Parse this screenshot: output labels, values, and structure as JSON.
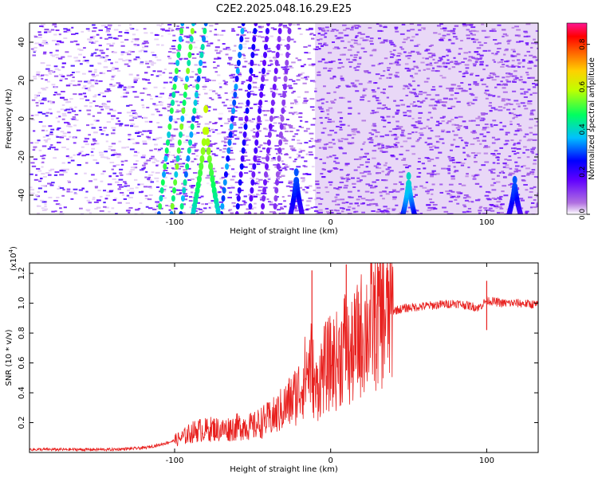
{
  "figure": {
    "title": "C2E2.2025.048.16.29.E25"
  },
  "chart_data": [
    {
      "type": "heatmap",
      "xlabel": "Height of straight line (km)",
      "ylabel": "Frequency (Hz)",
      "xlim": [
        -193,
        133
      ],
      "ylim": [
        -50,
        50
      ],
      "xticks": [
        -100,
        0,
        100
      ],
      "xtick_labels": [
        "-100",
        "0",
        "100"
      ],
      "yticks": [
        -40,
        -20,
        0,
        20,
        40
      ],
      "ytick_labels": [
        "-40",
        "-20",
        "0",
        "20",
        "40"
      ],
      "colorbar": {
        "label": "Normalized spectral amplitude",
        "range": [
          0,
          0.9
        ],
        "ticks": [
          0.0,
          0.2,
          0.4,
          0.6,
          0.8
        ],
        "tick_labels": [
          "0.0",
          "0.2",
          "0.4",
          "0.6",
          "0.8"
        ]
      },
      "colormap": [
        "#ffffff",
        "#8a2be2",
        "#0000ff",
        "#00ffff",
        "#00ff00",
        "#ffff00",
        "#ff8c00",
        "#ff0000",
        "#ff1493"
      ],
      "bands": [
        {
          "x_range": [
            -193,
            -105
          ],
          "description_level": 0.1,
          "pattern": "speckle"
        },
        {
          "x_range": [
            -105,
            -60
          ],
          "pattern": "stripes",
          "peak": 0.5
        },
        {
          "x_range": [
            -60,
            -10
          ],
          "pattern": "stripes",
          "peak": 0.2
        },
        {
          "x_range": [
            -10,
            45
          ],
          "pattern": "grid",
          "peak": 0.1
        },
        {
          "x_range": [
            45,
            52
          ],
          "pattern": "arc",
          "peak": 0.4
        },
        {
          "x_range": [
            52,
            115
          ],
          "pattern": "grid",
          "peak": 0.1
        },
        {
          "x_range": [
            115,
            133
          ],
          "pattern": "arc",
          "peak": 0.3
        }
      ],
      "features": [
        {
          "name": "bright-arc",
          "x": -80,
          "y": 5,
          "peak": 0.6
        },
        {
          "name": "small-arc",
          "x": -22,
          "y": -28,
          "peak": 0.3
        },
        {
          "name": "small-arc",
          "x": 50,
          "y": -30,
          "peak": 0.4
        },
        {
          "name": "small-arc",
          "x": 118,
          "y": -32,
          "peak": 0.3
        }
      ]
    },
    {
      "type": "line",
      "xlabel": "Height of straight line (km)",
      "ylabel": "SNR (10 * v/v)",
      "y_multiplier_label": "(x10",
      "y_multiplier_exp": "4",
      "y_multiplier_close": ")",
      "xlim": [
        -193,
        133
      ],
      "ylim": [
        0.0,
        1.27
      ],
      "xticks": [
        -100,
        0,
        100
      ],
      "xtick_labels": [
        "-100",
        "0",
        "100"
      ],
      "yticks": [
        0.2,
        0.4,
        0.6,
        0.8,
        1.0,
        1.2
      ],
      "ytick_labels": [
        "0.2",
        "0.4",
        "0.6",
        "0.8",
        "1.0",
        "1.2"
      ],
      "line_color": "#e8201e",
      "series": [
        {
          "x": [
            -193,
            -180,
            -160,
            -140,
            -120,
            -110,
            -100,
            -95,
            -90,
            -85,
            -80,
            -75,
            -70,
            -65,
            -60,
            -55,
            -50,
            -45,
            -40,
            -35,
            -30,
            -25,
            -20,
            -15,
            -12,
            -10,
            -5,
            0,
            5,
            8,
            10,
            12,
            15,
            20,
            25,
            30,
            40,
            50,
            60,
            70,
            80,
            90,
            95,
            98,
            100,
            105,
            110,
            120,
            133
          ],
          "y": [
            0.02,
            0.02,
            0.02,
            0.02,
            0.03,
            0.05,
            0.08,
            0.1,
            0.13,
            0.15,
            0.15,
            0.16,
            0.15,
            0.16,
            0.17,
            0.18,
            0.17,
            0.2,
            0.22,
            0.25,
            0.3,
            0.35,
            0.42,
            0.55,
            0.6,
            0.4,
            0.55,
            0.6,
            0.62,
            0.7,
            0.75,
            0.6,
            0.7,
            0.8,
            0.85,
            0.9,
            0.95,
            0.97,
            0.98,
            0.99,
            1.0,
            0.98,
            0.97,
            1.0,
            1.02,
            1.01,
            1.0,
            1.0,
            0.99
          ]
        }
      ],
      "spikes": [
        {
          "x": -12,
          "y": 1.22
        },
        {
          "x": 10,
          "y": 1.26
        },
        {
          "x": 100,
          "y": 1.15
        }
      ]
    }
  ]
}
